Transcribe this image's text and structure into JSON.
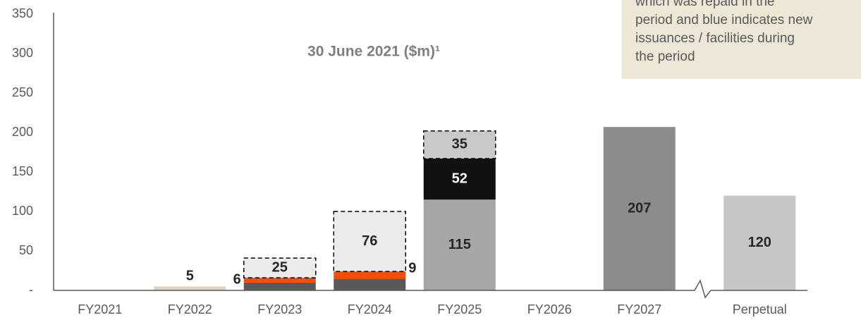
{
  "chart_data": {
    "type": "stacked_bar",
    "title": "30 June 2021 ($m)¹",
    "note_lines": [
      "which was repaid in the",
      "period and blue indicates new",
      "issuances / facilities during",
      "the period"
    ],
    "categories": [
      "FY2021",
      "FY2022",
      "FY2023",
      "FY2024",
      "FY2025",
      "FY2026",
      "FY2027",
      "Perpetual"
    ],
    "series": [
      {
        "color": "#595959",
        "values": [
          null,
          null,
          10,
          15,
          null,
          null,
          null,
          null
        ]
      },
      {
        "color": "#ff4d00",
        "values": [
          null,
          null,
          6,
          9,
          null,
          null,
          null,
          null
        ]
      },
      {
        "color": "#ebebeb",
        "dashed": true,
        "values": [
          null,
          null,
          25,
          76,
          null,
          null,
          null,
          null
        ]
      },
      {
        "color": "#ddd3c3",
        "values": [
          null,
          5,
          null,
          null,
          null,
          null,
          null,
          null
        ]
      },
      {
        "color": "#a6a6a6",
        "values": [
          null,
          null,
          null,
          null,
          115,
          null,
          null,
          null
        ]
      },
      {
        "color": "#111111",
        "values": [
          null,
          null,
          null,
          null,
          52,
          null,
          null,
          null
        ]
      },
      {
        "color": "#c9c9c9",
        "dashed": true,
        "values": [
          null,
          null,
          null,
          null,
          35,
          null,
          null,
          null
        ]
      },
      {
        "color": "#8c8c8c",
        "values": [
          null,
          null,
          null,
          null,
          null,
          null,
          207,
          null
        ]
      },
      {
        "color": "#c6c6c6",
        "values": [
          null,
          null,
          null,
          null,
          null,
          null,
          null,
          120
        ]
      }
    ],
    "ylim": [
      0,
      350
    ],
    "yticks": [
      {
        "value": 0,
        "label": "-"
      },
      50,
      100,
      150,
      200,
      250,
      300,
      350
    ],
    "axis_break": true
  }
}
